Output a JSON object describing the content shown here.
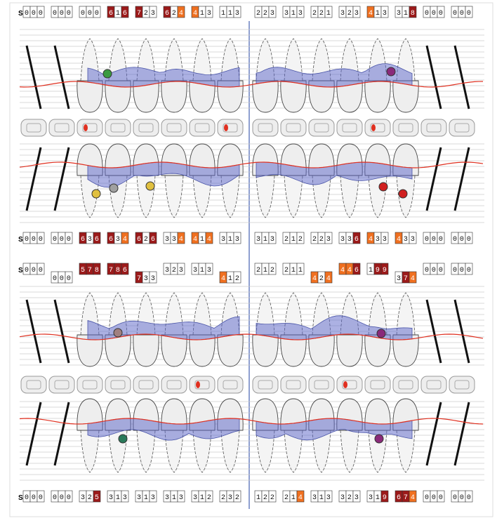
{
  "rows": [
    {
      "label": "ST",
      "groups": [
        "000",
        "000",
        "000",
        "616",
        "723",
        "624",
        "413",
        "113",
        "223",
        "313",
        "221",
        "323",
        "413",
        "318",
        "000",
        "000"
      ]
    },
    {
      "label": "ST",
      "groups": [
        "000",
        "000",
        "636",
        "634",
        "626",
        "334",
        "414",
        "313",
        "313",
        "212",
        "223",
        "336",
        "433",
        "433",
        "000",
        "000"
      ]
    },
    {
      "label": "ST",
      "groups": [
        "000",
        "000",
        "578",
        "786",
        "733",
        "323",
        "313",
        "412",
        "212",
        "211",
        "424",
        "446",
        "199",
        "374",
        "000",
        "000"
      ]
    },
    {
      "label": "ST",
      "groups": [
        "000",
        "000",
        "325",
        "313",
        "313",
        "313",
        "312",
        "232",
        "122",
        "214",
        "313",
        "323",
        "319",
        "674",
        "000",
        "000"
      ]
    }
  ]
}
